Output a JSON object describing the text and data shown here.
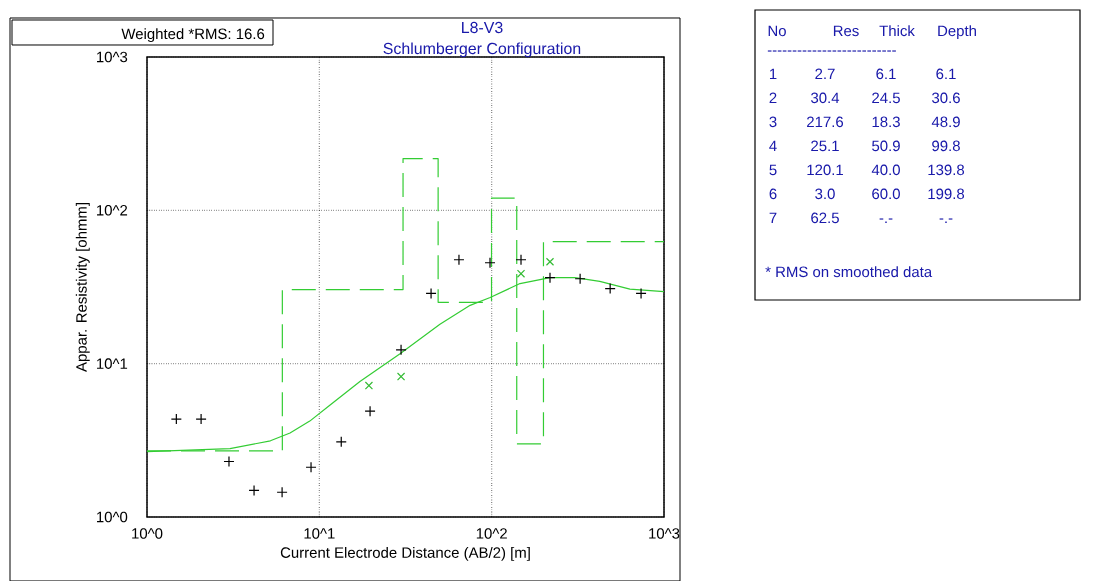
{
  "chart_data": {
    "type": "scatter",
    "title": "L8-V3",
    "subtitle": "Schlumberger Configuration",
    "xlabel": "Current Electrode Distance (AB/2) [m]",
    "ylabel": "Appar. Resistivity [ohmm]",
    "log": "xy",
    "grid": true,
    "xlim": [
      1,
      1000
    ],
    "ylim": [
      1,
      1000
    ],
    "xticks": [
      {
        "value": 1,
        "label": "10^0"
      },
      {
        "value": 10,
        "label": "10^1"
      },
      {
        "value": 100,
        "label": "10^2"
      },
      {
        "value": 1000,
        "label": "10^3"
      }
    ],
    "yticks": [
      {
        "value": 1,
        "label": "10^0"
      },
      {
        "value": 10,
        "label": "10^1"
      },
      {
        "value": 100,
        "label": "10^2"
      },
      {
        "value": 1000,
        "label": "10^3"
      }
    ],
    "series": [
      {
        "color": "#000000",
        "marker": "plus",
        "x": [
          1.48,
          2.06,
          2.99,
          4.18,
          6.08,
          8.95,
          13.4,
          19.7,
          29.8,
          44.5,
          64.6,
          97.8,
          148,
          218,
          326,
          487,
          736
        ],
        "values": [
          4.35,
          4.35,
          2.3,
          1.49,
          1.45,
          2.11,
          3.09,
          4.9,
          12.3,
          28.7,
          47.6,
          45.5,
          47.6,
          36.4,
          35.8,
          30.9,
          28.7
        ]
      },
      {
        "color": "#33bb33",
        "marker": "cross",
        "x": [
          19.4,
          29.8,
          148,
          218
        ],
        "values": [
          7.2,
          8.24,
          38.6,
          46.2
        ]
      },
      {
        "type": "step",
        "color": "#33cc33",
        "line_style": "dashed",
        "x": [
          1,
          6.1,
          30.6,
          48.9,
          99.8,
          139.8,
          199.8,
          1000
        ],
        "values": [
          2.7,
          30.4,
          217.6,
          25.1,
          120.1,
          3.0,
          62.5,
          62.5
        ]
      },
      {
        "type": "line",
        "color": "#33cc33",
        "line_style": "solid",
        "x": [
          1,
          3.03,
          5.2,
          6.76,
          8.8,
          11.5,
          17.2,
          29.4,
          50.1,
          75,
          98,
          146,
          218,
          304,
          424,
          634,
          1000
        ],
        "values": [
          2.67,
          2.79,
          3.14,
          3.53,
          4.22,
          5.35,
          7.65,
          11.6,
          18.1,
          24.0,
          27.0,
          33.3,
          36.4,
          36.4,
          34.4,
          30.6,
          29.5
        ]
      }
    ],
    "annotations": [
      "Weighted *RMS:  16.6",
      "No",
      "Res",
      "Thick",
      "Depth",
      "--------------------------",
      "1",
      "2.7",
      "6.1",
      "6.1",
      "2",
      "30.4",
      "24.5",
      "30.6",
      "3",
      "217.6",
      "18.3",
      "48.9",
      "4",
      "25.1",
      "50.9",
      "99.8",
      "5",
      "120.1",
      "40.0",
      "139.8",
      "6",
      "3.0",
      "60.0",
      "199.8",
      "7",
      "62.5",
      "-.-",
      "-.-",
      "* RMS on smoothed data"
    ]
  }
}
